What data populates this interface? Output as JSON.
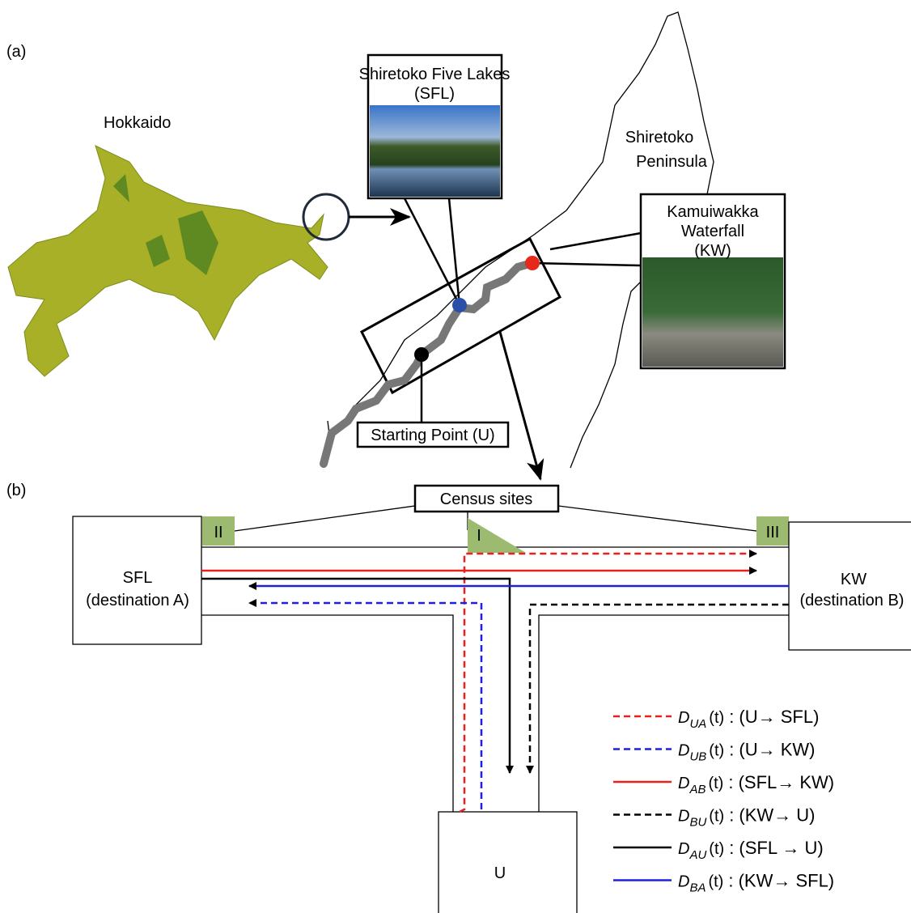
{
  "panel_a": {
    "label": "(a)",
    "hokkaido": "Hokkaido",
    "sfl": [
      "Shiretoko Five Lakes",
      "(SFL)"
    ],
    "peninsula": [
      "Shiretoko",
      "Peninsula"
    ],
    "kw": [
      "Kamuiwakka",
      "Waterfall",
      "(KW)"
    ],
    "start": "Starting Point (U)"
  },
  "panel_b": {
    "label": "(b)",
    "census": "Census sites",
    "sites": [
      "II",
      "I",
      "III"
    ],
    "sfl": {
      "name": "SFL",
      "sub": "(destination A)"
    },
    "kw": {
      "name": "KW",
      "sub": "(destination B)"
    },
    "u": "U",
    "legend": {
      "symbol": "D",
      "arg": "(t)",
      "items": [
        {
          "sub": "UA",
          "route": ": (U→ SFL)",
          "color": "#e8211f",
          "dashed": true
        },
        {
          "sub": "UB",
          "route": ": (U→ KW)",
          "color": "#1f1fe0",
          "dashed": true
        },
        {
          "sub": "AB",
          "route": ": (SFL→ KW)",
          "color": "#e8211f",
          "dashed": false
        },
        {
          "sub": "BU",
          "route": ": (KW→ U)",
          "color": "#000000",
          "dashed": true
        },
        {
          "sub": "AU",
          "route": ": (SFL → U)",
          "color": "#000000",
          "dashed": false
        },
        {
          "sub": "BA",
          "route": ": (KW→ SFL)",
          "color": "#1f1fe0",
          "dashed": false
        }
      ]
    }
  }
}
